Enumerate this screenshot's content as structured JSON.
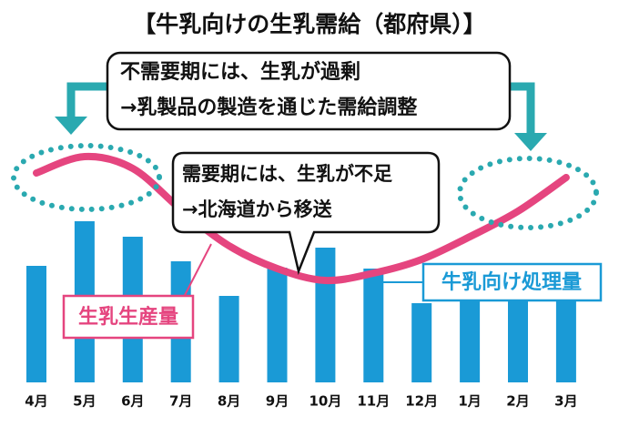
{
  "chart_data": {
    "type": "bar",
    "title": "【牛乳向けの生乳需給（都府県）】",
    "annotations": [
      {
        "lines": [
          "不需要期には、生乳が過剰",
          "→乳製品の製造を通じた需給調整"
        ]
      },
      {
        "lines": [
          "需要期には、生乳が不足",
          "→北海道から移送"
        ]
      }
    ],
    "categories": [
      "4月",
      "5月",
      "6月",
      "7月",
      "8月",
      "9月",
      "10月",
      "11月",
      "12月",
      "1月",
      "2月",
      "3月"
    ],
    "series": [
      {
        "name": "牛乳向け処理量",
        "color": "#1a9ad6",
        "values": [
          128,
          177,
          160,
          133,
          95,
          126,
          148,
          125,
          87,
          110,
          110,
          115
        ]
      },
      {
        "name": "生乳生産量",
        "color": "#e5457f",
        "type": "line",
        "values": [
          230,
          248,
          235,
          190,
          150,
          125,
          112,
          120,
          135,
          160,
          188,
          225
        ]
      }
    ],
    "ylim": [
      0,
      260
    ]
  }
}
